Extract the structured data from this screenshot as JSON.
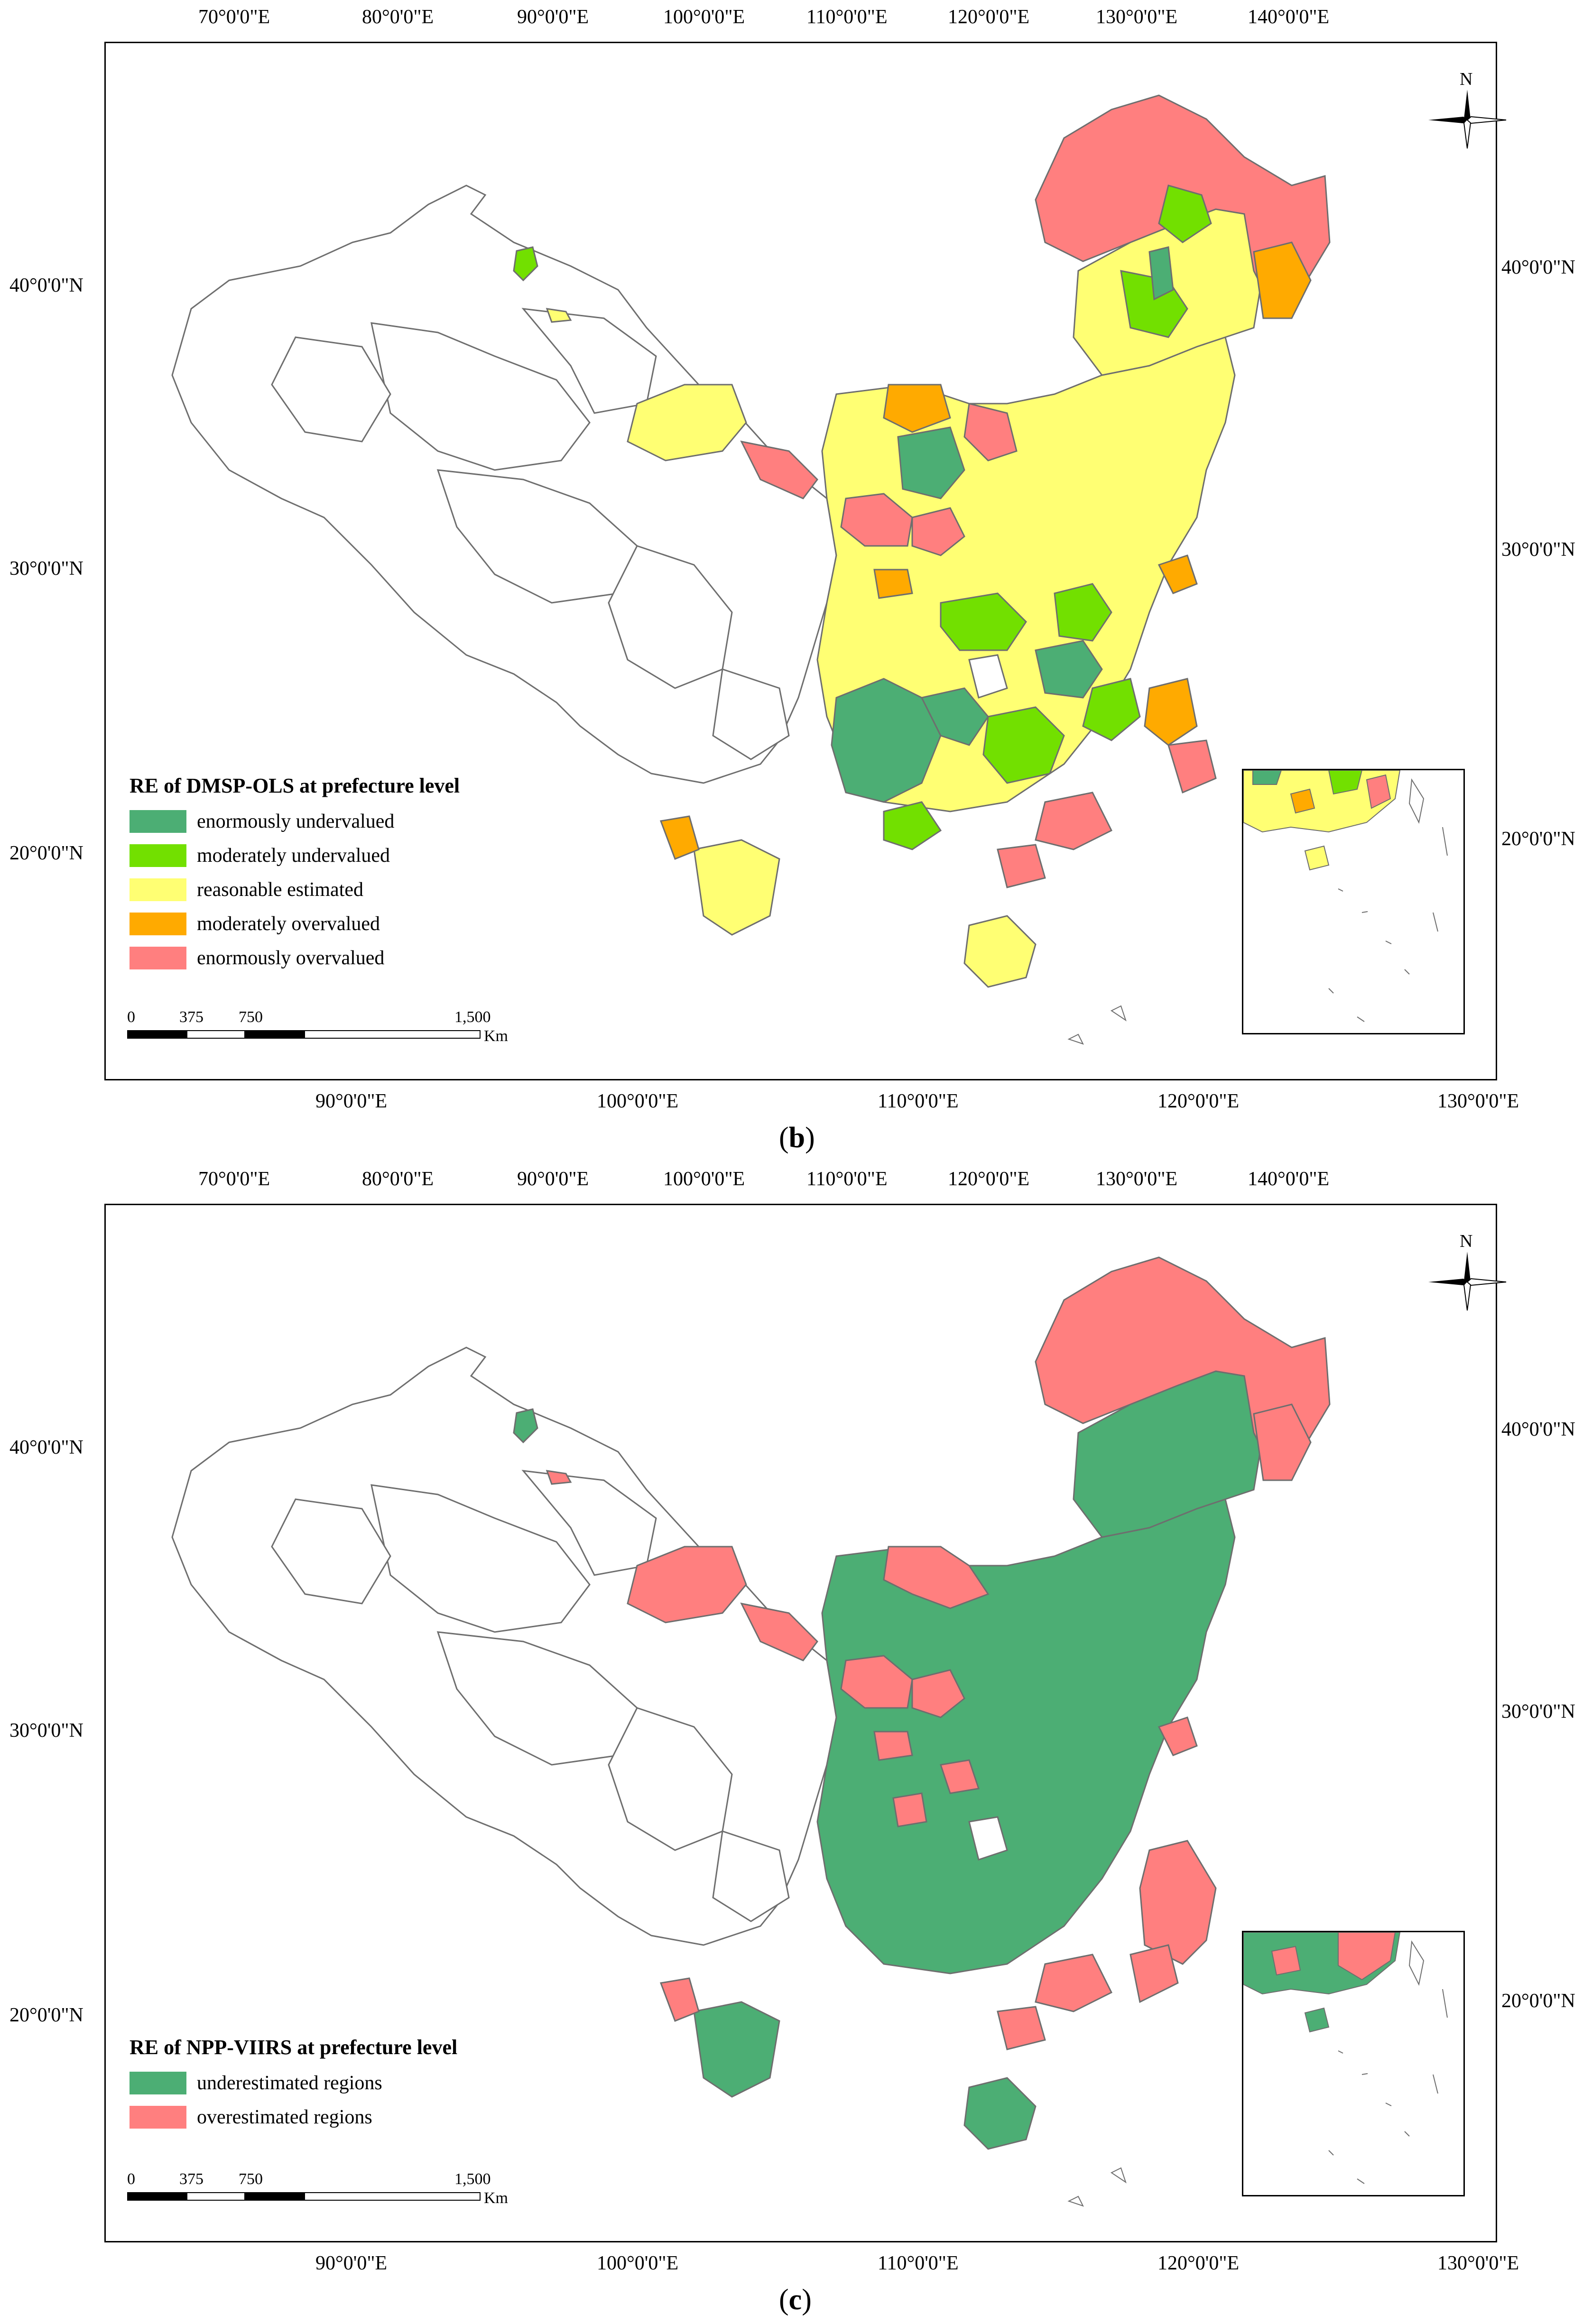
{
  "colors": {
    "enormously_undervalued": "#4cae74",
    "moderately_undervalued": "#72e000",
    "reasonable_estimated": "#ffff73",
    "moderately_overvalued": "#ffaa00",
    "enormously_overvalued": "#ff7f7f",
    "underestimated": "#4cae74",
    "overestimated": "#ff7f7f",
    "unclassified": "#ffffff",
    "border": "#6e6e6e"
  },
  "icons": {
    "north_arrow": "north-arrow-compass-icon"
  },
  "panels": [
    {
      "caption_letter": "b",
      "top_ticks": [
        "70°0'0\"E",
        "80°0'0\"E",
        "90°0'0\"E",
        "100°0'0\"E",
        "110°0'0\"E",
        "120°0'0\"E",
        "130°0'0\"E",
        "140°0'0\"E"
      ],
      "bottom_ticks": [
        "90°0'0\"E",
        "100°0'0\"E",
        "110°0'0\"E",
        "120°0'0\"E",
        "130°0'0\"E"
      ],
      "left_ticks": [
        "40°0'0\"N",
        "30°0'0\"N",
        "20°0'0\"N"
      ],
      "right_ticks": [
        "40°0'0\"N",
        "30°0'0\"N",
        "20°0'0\"N"
      ],
      "north_label": "N",
      "legend": {
        "title": "RE of DMSP-OLS at prefecture level",
        "items": [
          {
            "label": "enormously undervalued",
            "color": "#4cae74"
          },
          {
            "label": "moderately undervalued",
            "color": "#72e000"
          },
          {
            "label": "reasonable estimated",
            "color": "#ffff73"
          },
          {
            "label": "moderately overvalued",
            "color": "#ffaa00"
          },
          {
            "label": "enormously overvalued",
            "color": "#ff7f7f"
          }
        ]
      },
      "scale": {
        "labels": [
          "0",
          "375",
          "750",
          "1,500"
        ],
        "unit": "Km"
      }
    },
    {
      "caption_letter": "c",
      "top_ticks": [
        "70°0'0\"E",
        "80°0'0\"E",
        "90°0'0\"E",
        "100°0'0\"E",
        "110°0'0\"E",
        "120°0'0\"E",
        "130°0'0\"E",
        "140°0'0\"E"
      ],
      "bottom_ticks": [
        "90°0'0\"E",
        "100°0'0\"E",
        "110°0'0\"E",
        "120°0'0\"E",
        "130°0'0\"E"
      ],
      "left_ticks": [
        "40°0'0\"N",
        "30°0'0\"N",
        "20°0'0\"N"
      ],
      "right_ticks": [
        "40°0'0\"N",
        "30°0'0\"N",
        "20°0'0\"N"
      ],
      "north_label": "N",
      "legend": {
        "title": "RE of NPP-VIIRS at prefecture level",
        "items": [
          {
            "label": "underestimated regions",
            "color": "#4cae74"
          },
          {
            "label": "overestimated regions",
            "color": "#ff7f7f"
          }
        ]
      },
      "scale": {
        "labels": [
          "0",
          "375",
          "750",
          "1,500"
        ],
        "unit": "Km"
      }
    }
  ]
}
